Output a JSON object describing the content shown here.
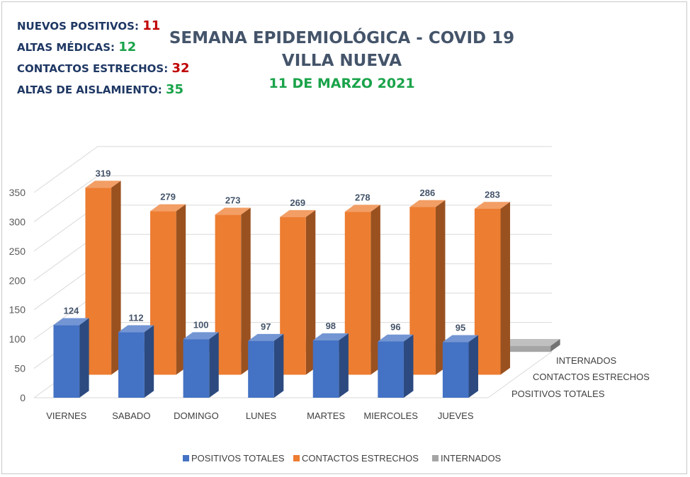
{
  "stats": [
    {
      "label": "NUEVOS POSITIVOS:",
      "value": "11",
      "color": "#c00000"
    },
    {
      "label": "ALTAS MÉDICAS:",
      "value": "12",
      "color": "#1aa34a"
    },
    {
      "label": "CONTACTOS ESTRECHOS:",
      "value": "32",
      "color": "#c00000"
    },
    {
      "label": "ALTAS DE AISLAMIENTO:",
      "value": "35",
      "color": "#1aa34a"
    }
  ],
  "chart_data": {
    "type": "bar",
    "title": "SEMANA EPIDEMIOLÓGICA - COVID 19",
    "subtitle": "VILLA NUEVA",
    "date": "11 DE MARZO 2021",
    "categories": [
      "VIERNES",
      "SABADO",
      "DOMINGO",
      "LUNES",
      "MARTES",
      "MIERCOLES",
      "JUEVES"
    ],
    "series": [
      {
        "name": "POSITIVOS TOTALES",
        "values": [
          124,
          112,
          100,
          97,
          98,
          96,
          95
        ],
        "color": "#4472c4"
      },
      {
        "name": "CONTACTOS ESTRECHOS",
        "values": [
          319,
          279,
          273,
          269,
          278,
          286,
          283
        ],
        "color": "#ed7d31"
      },
      {
        "name": "INTERNADOS",
        "values": [
          8,
          9,
          9,
          9,
          9,
          9,
          10
        ],
        "color": "#a5a5a5"
      }
    ],
    "y_ticks": [
      "0",
      "50",
      "100",
      "150",
      "200",
      "250",
      "300",
      "350"
    ],
    "ylim": [
      0,
      350
    ],
    "depth_labels": [
      "INTERNADOS",
      "CONTACTOS ESTRECHOS",
      "POSITIVOS TOTALES"
    ],
    "legend_position": "bottom",
    "grid": true,
    "style": "3d-column"
  }
}
